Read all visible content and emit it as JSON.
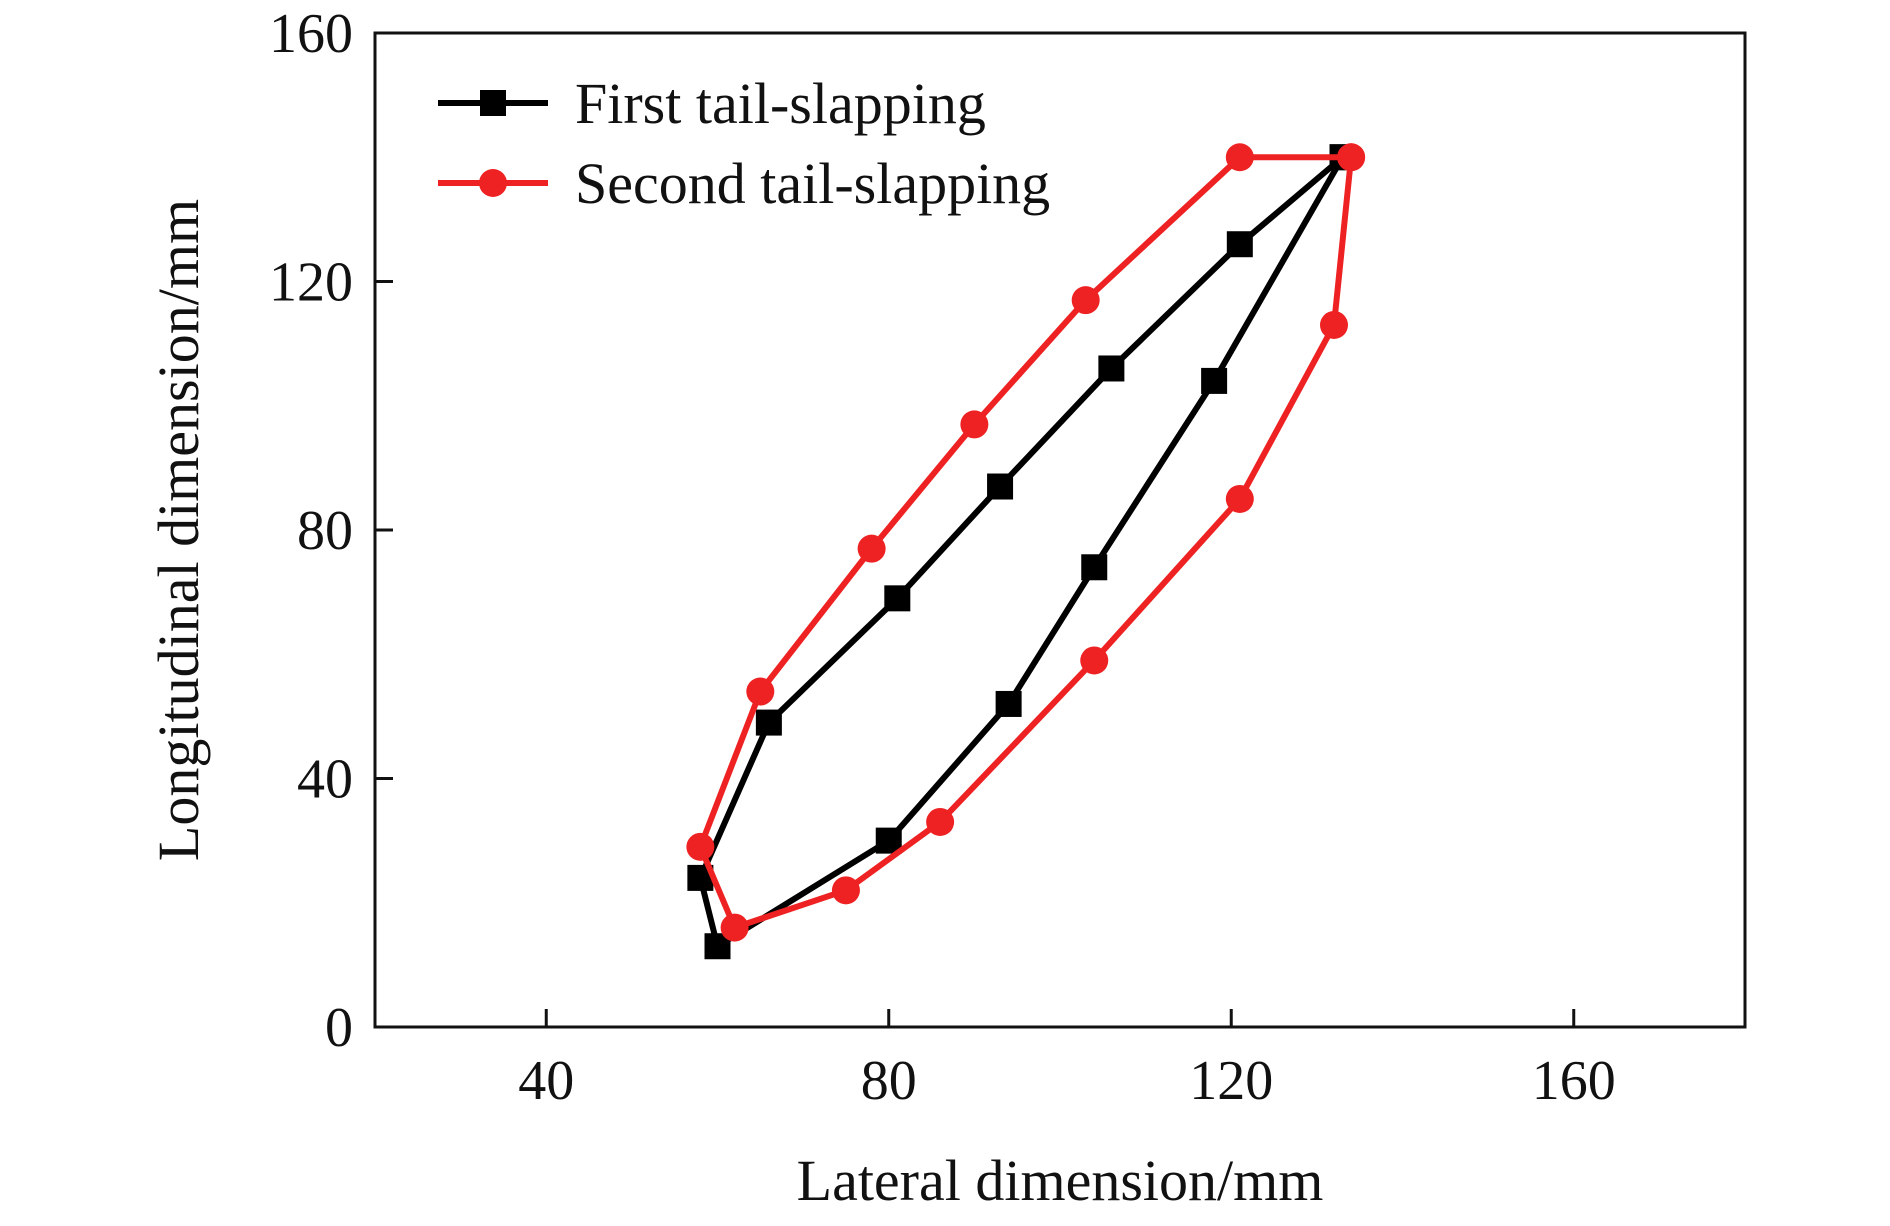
{
  "chart_data": {
    "type": "line",
    "title": "",
    "xlabel": "Lateral dimension/mm",
    "ylabel": "Longitudinal dimension/mm",
    "xlim": [
      20,
      180
    ],
    "ylim": [
      0,
      160
    ],
    "x_ticks": [
      40,
      80,
      120,
      160
    ],
    "y_ticks": [
      0,
      40,
      80,
      120,
      160
    ],
    "x_tick_labels": [
      "40",
      "80",
      "120",
      "160"
    ],
    "y_tick_labels": [
      "0",
      "40",
      "80",
      "120",
      "160"
    ],
    "grid": false,
    "legend_position": "top-left",
    "series": [
      {
        "name": "First tail-slapping",
        "color": "#000000",
        "marker": "square",
        "x": [
          133,
          121,
          106,
          93,
          81,
          66,
          58,
          60,
          80,
          94,
          104,
          118,
          133
        ],
        "y": [
          140,
          126,
          106,
          87,
          69,
          49,
          24,
          13,
          30,
          52,
          74,
          104,
          140
        ]
      },
      {
        "name": "Second tail-slapping",
        "color": "#ee2222",
        "marker": "circle",
        "x": [
          134,
          121,
          103,
          90,
          78,
          65,
          58,
          62,
          75,
          86,
          104,
          121,
          132,
          134
        ],
        "y": [
          140,
          140,
          117,
          97,
          77,
          54,
          29,
          16,
          22,
          33,
          59,
          85,
          113,
          140
        ]
      }
    ]
  }
}
